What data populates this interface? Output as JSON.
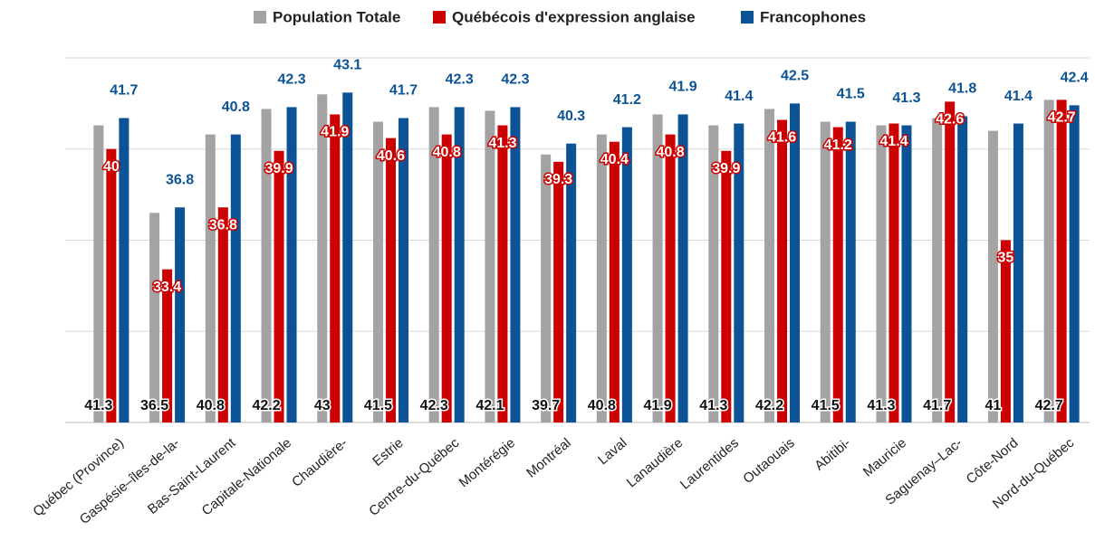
{
  "chart_data": {
    "type": "bar",
    "categories": [
      "Québec (Province)",
      "Gaspésie–îles-de-la-",
      "Bas-Saint-Laurent",
      "Capitale-Nationale",
      "Chaudière-",
      "Estrie",
      "Centre-du-Québec",
      "Montérégie",
      "Montréal",
      "Laval",
      "Lanaudière",
      "Laurentides",
      "Outaouais",
      "Abitibi-",
      "Mauricie",
      "Saguenay–Lac-",
      "Côte-Nord",
      "Nord-du-Québec"
    ],
    "series": [
      {
        "name": "Population Totale",
        "color": "#a3a3a3",
        "values": [
          41.3,
          36.5,
          40.8,
          42.2,
          43,
          41.5,
          42.3,
          42.1,
          39.7,
          40.8,
          41.9,
          41.3,
          42.2,
          41.5,
          41.3,
          41.7,
          41,
          42.7
        ]
      },
      {
        "name": "Québécois d'expression anglaise",
        "color": "#cc0000",
        "values": [
          40,
          33.4,
          36.8,
          39.9,
          41.9,
          40.6,
          40.8,
          41.3,
          39.3,
          40.4,
          40.8,
          39.9,
          41.6,
          41.2,
          41.4,
          42.6,
          35,
          42.7
        ]
      },
      {
        "name": "Francophones",
        "color": "#0b5394",
        "values": [
          41.7,
          36.8,
          40.8,
          42.3,
          43.1,
          41.7,
          42.3,
          42.3,
          40.3,
          41.2,
          41.9,
          41.4,
          42.5,
          41.5,
          41.3,
          41.8,
          41.4,
          42.4
        ]
      }
    ],
    "ylim": [
      25,
      45
    ],
    "yticks": [
      25,
      30,
      35,
      40,
      45
    ],
    "grid": true,
    "legend": "top"
  }
}
